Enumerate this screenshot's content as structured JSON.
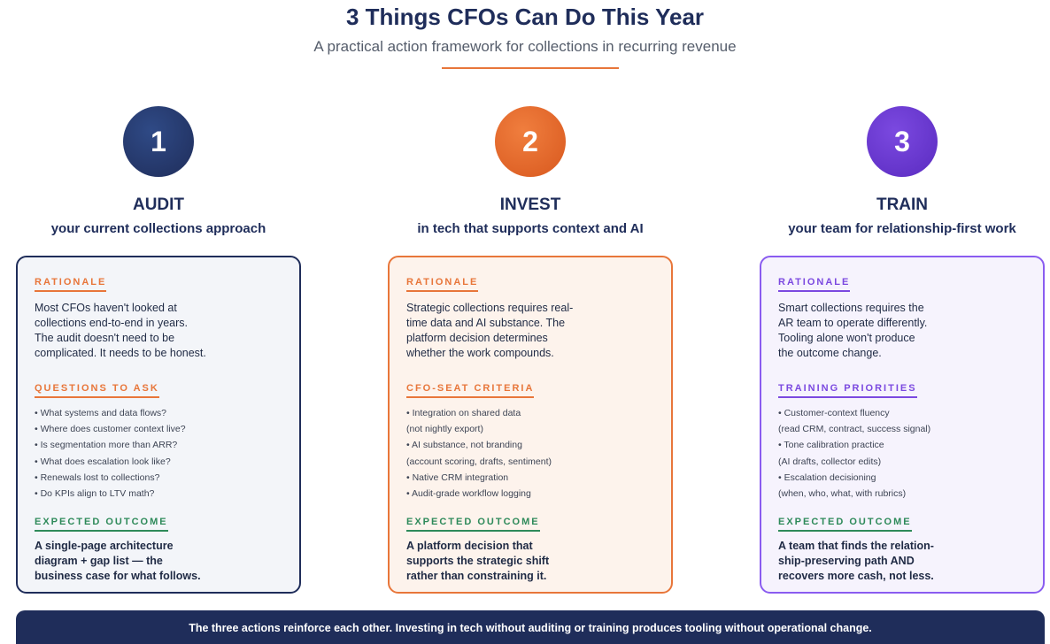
{
  "header": {
    "title": "3 Things CFOs Can Do This Year",
    "subtitle": "A practical action framework for collections in recurring revenue"
  },
  "columns": [
    {
      "number": "1",
      "heading": "AUDIT",
      "subheading": "your current collections approach",
      "rationale_label": "RATIONALE",
      "rationale_lines": [
        "Most CFOs haven't looked at",
        "collections end-to-end in years.",
        "The audit doesn't need to be",
        "complicated. It needs to be honest."
      ],
      "list_label": "QUESTIONS TO ASK",
      "list_items": [
        "• What systems and data flows?",
        "• Where does customer context live?",
        "• Is segmentation more than ARR?",
        "• What does escalation look like?",
        "• Renewals lost to collections?",
        "• Do KPIs align to LTV math?"
      ],
      "outcome_label": "EXPECTED OUTCOME",
      "outcome_lines": [
        "A single-page architecture",
        "diagram + gap list — the",
        "business case for what follows."
      ]
    },
    {
      "number": "2",
      "heading": "INVEST",
      "subheading": "in tech that supports context and AI",
      "rationale_label": "RATIONALE",
      "rationale_lines": [
        "Strategic collections requires real-",
        "time data and AI substance. The",
        "platform decision determines",
        "whether the work compounds."
      ],
      "list_label": "CFO-SEAT CRITERIA",
      "list_items": [
        "• Integration on shared data",
        "(not nightly export)",
        "• AI substance, not branding",
        "(account scoring, drafts, sentiment)",
        "• Native CRM integration",
        "• Audit-grade workflow logging"
      ],
      "outcome_label": "EXPECTED OUTCOME",
      "outcome_lines": [
        "A platform decision that",
        "supports the strategic shift",
        "rather than constraining it."
      ]
    },
    {
      "number": "3",
      "heading": "TRAIN",
      "subheading": "your team for relationship-first work",
      "rationale_label": "RATIONALE",
      "rationale_lines": [
        "Smart collections requires the",
        "AR team to operate differently.",
        "Tooling alone won't produce",
        "the outcome change."
      ],
      "list_label": "TRAINING PRIORITIES",
      "list_items": [
        "• Customer-context fluency",
        "(read CRM, contract, success signal)",
        "• Tone calibration practice",
        "(AI drafts, collector edits)",
        "• Escalation decisioning",
        "(when, who, what, with rubrics)"
      ],
      "outcome_label": "EXPECTED OUTCOME",
      "outcome_lines": [
        "A team that finds the relation-",
        "ship-preserving path AND",
        "recovers more cash, not less."
      ]
    }
  ],
  "footer": {
    "text": "The three actions reinforce each other. Investing in tech without auditing or training produces tooling without operational change."
  },
  "colors": {
    "navy": "#1f2d5a",
    "orange": "#e8763a",
    "purple": "#7b49e0",
    "green": "#2e8a5a"
  }
}
